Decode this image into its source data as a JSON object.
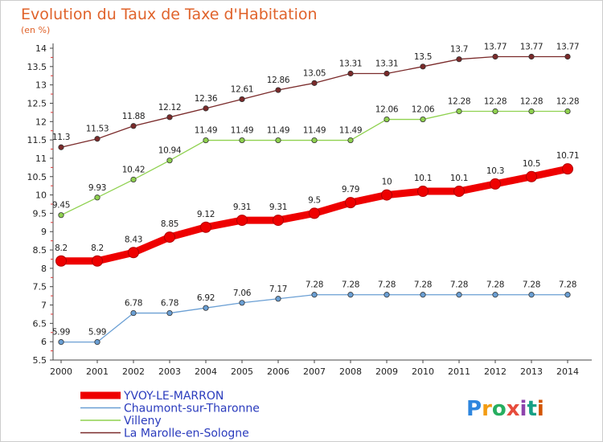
{
  "chart_data": {
    "type": "line",
    "title": "Evolution du Taux de Taxe d'Habitation",
    "subtitle": "(en %)",
    "x": [
      "2000",
      "2001",
      "2002",
      "2003",
      "2004",
      "2005",
      "2006",
      "2007",
      "2008",
      "2009",
      "2010",
      "2011",
      "2012",
      "2013",
      "2014"
    ],
    "yticks": [
      "5.5",
      "6",
      "6.5",
      "7",
      "7.5",
      "8",
      "8.5",
      "9",
      "9.5",
      "10",
      "10.5",
      "11",
      "11.5",
      "12",
      "12.5",
      "13",
      "13.5",
      "14"
    ],
    "ylim": [
      5.5,
      14
    ],
    "grid": false,
    "legend_position": "bottom-left",
    "series": [
      {
        "name": "La Marolle-en-Sologne",
        "color": "#7a2a2a",
        "values": [
          11.3,
          11.53,
          11.88,
          12.12,
          12.36,
          12.61,
          12.86,
          13.05,
          13.31,
          13.31,
          13.5,
          13.7,
          13.77,
          13.77,
          13.77
        ],
        "labels": [
          "11.3",
          "11.53",
          "11.88",
          "12.12",
          "12.36",
          "12.61",
          "12.86",
          "13.05",
          "13.31",
          "13.31",
          "13.5",
          "13.7",
          "13.77",
          "13.77",
          "13.77"
        ]
      },
      {
        "name": "Villeny",
        "color": "#8fd14f",
        "values": [
          9.45,
          9.93,
          10.42,
          10.94,
          11.49,
          11.49,
          11.49,
          11.49,
          11.49,
          12.06,
          12.06,
          12.28,
          12.28,
          12.28,
          12.28
        ],
        "labels": [
          "9.45",
          "9.93",
          "10.42",
          "10.94",
          "11.49",
          "11.49",
          "11.49",
          "11.49",
          "11.49",
          "12.06",
          "12.06",
          "12.28",
          "12.28",
          "12.28",
          "12.28"
        ]
      },
      {
        "name": "YVOY-LE-MARRON",
        "color": "#ee0000",
        "values": [
          8.2,
          8.2,
          8.43,
          8.85,
          9.12,
          9.31,
          9.31,
          9.5,
          9.79,
          10,
          10.1,
          10.1,
          10.3,
          10.5,
          10.71
        ],
        "labels": [
          "8.2",
          "8.2",
          "8.43",
          "8.85",
          "9.12",
          "9.31",
          "9.31",
          "9.5",
          "9.79",
          "10",
          "10.1",
          "10.1",
          "10.3",
          "10.5",
          "10.71"
        ]
      },
      {
        "name": "Chaumont-sur-Tharonne",
        "color": "#6a9fd4",
        "values": [
          5.99,
          5.99,
          6.78,
          6.78,
          6.92,
          7.06,
          7.17,
          7.28,
          7.28,
          7.28,
          7.28,
          7.28,
          7.28,
          7.28,
          7.28
        ],
        "labels": [
          "5.99",
          "5.99",
          "6.78",
          "6.78",
          "6.92",
          "7.06",
          "7.17",
          "7.28",
          "7.28",
          "7.28",
          "7.28",
          "7.28",
          "7.28",
          "7.28",
          "7.28"
        ]
      }
    ],
    "legend": [
      {
        "name": "YVOY-LE-MARRON",
        "color": "#ee0000"
      },
      {
        "name": "Chaumont-sur-Tharonne",
        "color": "#6a9fd4"
      },
      {
        "name": "Villeny",
        "color": "#8fd14f"
      },
      {
        "name": "La Marolle-en-Sologne",
        "color": "#7a2a2a"
      }
    ],
    "brand": [
      "P",
      "r",
      "o",
      "x",
      "i",
      "t",
      "i"
    ]
  }
}
